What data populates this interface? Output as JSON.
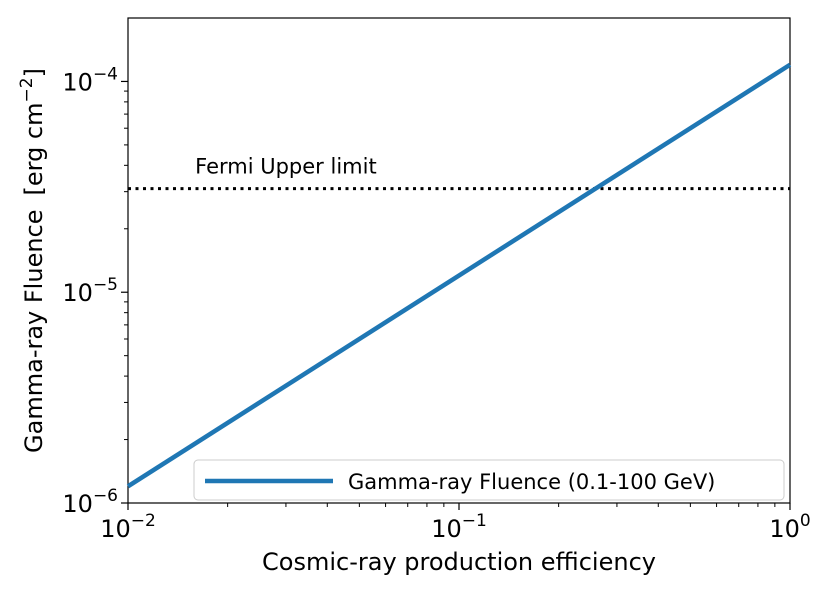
{
  "chart_data": {
    "type": "line",
    "title": "",
    "xlabel": "Cosmic-ray production efficiency",
    "ylabel_main": "Gamma-ray Fluence",
    "ylabel_unit_prefix": "[erg cm",
    "ylabel_unit_exp": "−2",
    "ylabel_unit_suffix": "]",
    "xscale": "log",
    "yscale": "log",
    "xlim": [
      0.01,
      1
    ],
    "ylim": [
      1e-06,
      0.0002
    ],
    "grid": false,
    "legend_placement": "lower right",
    "series": [
      {
        "name": "Gamma-ray Fluence (0.1-100 GeV)",
        "color": "#1f77b4",
        "x": [
          0.01,
          1
        ],
        "y": [
          1.2e-06,
          0.00012
        ]
      }
    ],
    "hlines": [
      {
        "y": 3.1e-05,
        "style": "dotted",
        "color": "#000000",
        "label": "Fermi Upper limit",
        "label_x": 0.03
      }
    ],
    "x_ticks": [
      {
        "value": 0.01,
        "base": "10",
        "exp": "−2"
      },
      {
        "value": 0.1,
        "base": "10",
        "exp": "−1"
      },
      {
        "value": 1,
        "base": "10",
        "exp": "0"
      }
    ],
    "y_ticks": [
      {
        "value": 1e-06,
        "base": "10",
        "exp": "−6"
      },
      {
        "value": 1e-05,
        "base": "10",
        "exp": "−5"
      },
      {
        "value": 0.0001,
        "base": "10",
        "exp": "−4"
      }
    ]
  }
}
